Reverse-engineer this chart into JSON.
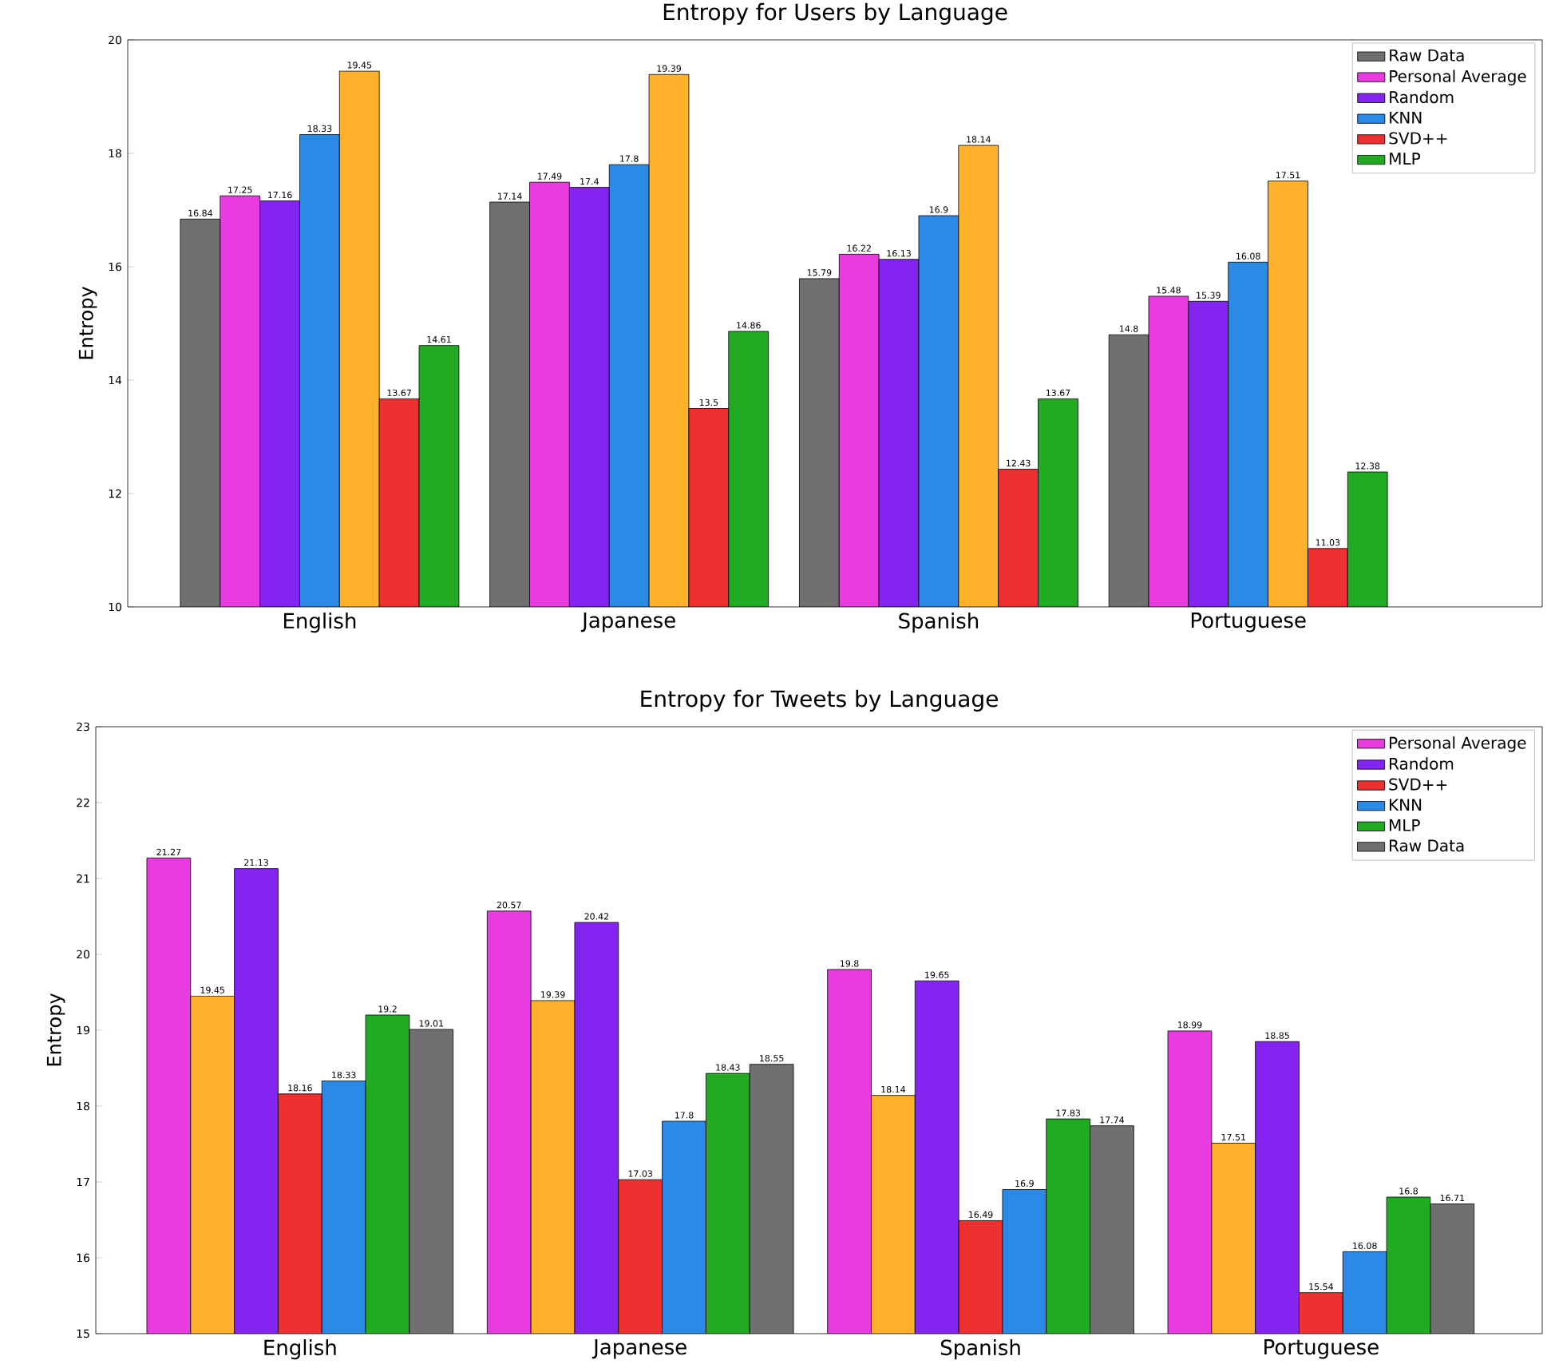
{
  "chart_data": [
    {
      "type": "bar",
      "title": "Entropy for Users by Language",
      "ylabel": "Entropy",
      "categories": [
        "English",
        "Japanese",
        "Spanish",
        "Portuguese"
      ],
      "ylim": [
        10,
        20
      ],
      "yticks": [
        10,
        12,
        14,
        16,
        18,
        20
      ],
      "data_labels": true,
      "legend": "top right",
      "series": [
        {
          "name": "Raw Data",
          "color": "#707070",
          "values": [
            16.84,
            17.14,
            15.79,
            14.8
          ]
        },
        {
          "name": "Personal Average",
          "color": "#e83be0",
          "values": [
            17.25,
            17.49,
            16.22,
            15.48
          ]
        },
        {
          "name": "Random",
          "color": "#8424f0",
          "values": [
            17.16,
            17.4,
            16.13,
            15.39
          ]
        },
        {
          "name": "KNN",
          "color": "#2a8ae6",
          "values": [
            18.33,
            17.8,
            16.9,
            16.08
          ]
        },
        {
          "color": "#ffb12c",
          "values": [
            19.45,
            19.39,
            18.14,
            17.51
          ]
        },
        {
          "name": "SVD++",
          "color": "#ee3030",
          "values": [
            13.67,
            13.5,
            12.43,
            11.03
          ]
        },
        {
          "name": "MLP",
          "color": "#22aa22",
          "values": [
            14.61,
            14.86,
            13.67,
            12.38
          ]
        }
      ]
    },
    {
      "type": "bar",
      "title": "Entropy for Tweets by Language",
      "ylabel": "Entropy",
      "categories": [
        "English",
        "Japanese",
        "Spanish",
        "Portuguese"
      ],
      "ylim": [
        15,
        23
      ],
      "yticks": [
        15,
        16,
        17,
        18,
        19,
        20,
        21,
        22,
        23
      ],
      "data_labels": true,
      "legend": "top right",
      "series": [
        {
          "name": "Personal Average",
          "color": "#e83be0",
          "values": [
            21.27,
            20.57,
            19.8,
            18.99
          ]
        },
        {
          "color": "#ffb12c",
          "values": [
            19.45,
            19.39,
            18.14,
            17.51
          ]
        },
        {
          "name": "Random",
          "color": "#8424f0",
          "values": [
            21.13,
            20.42,
            19.65,
            18.85
          ]
        },
        {
          "name": "SVD++",
          "color": "#ee3030",
          "values": [
            18.16,
            17.03,
            16.49,
            15.54
          ]
        },
        {
          "name": "KNN",
          "color": "#2a8ae6",
          "values": [
            18.33,
            17.8,
            16.9,
            16.08
          ]
        },
        {
          "name": "MLP",
          "color": "#22aa22",
          "values": [
            19.2,
            18.43,
            17.83,
            16.8
          ]
        },
        {
          "name": "Raw Data",
          "color": "#707070",
          "values": [
            19.01,
            18.55,
            17.74,
            16.71
          ]
        }
      ]
    }
  ]
}
